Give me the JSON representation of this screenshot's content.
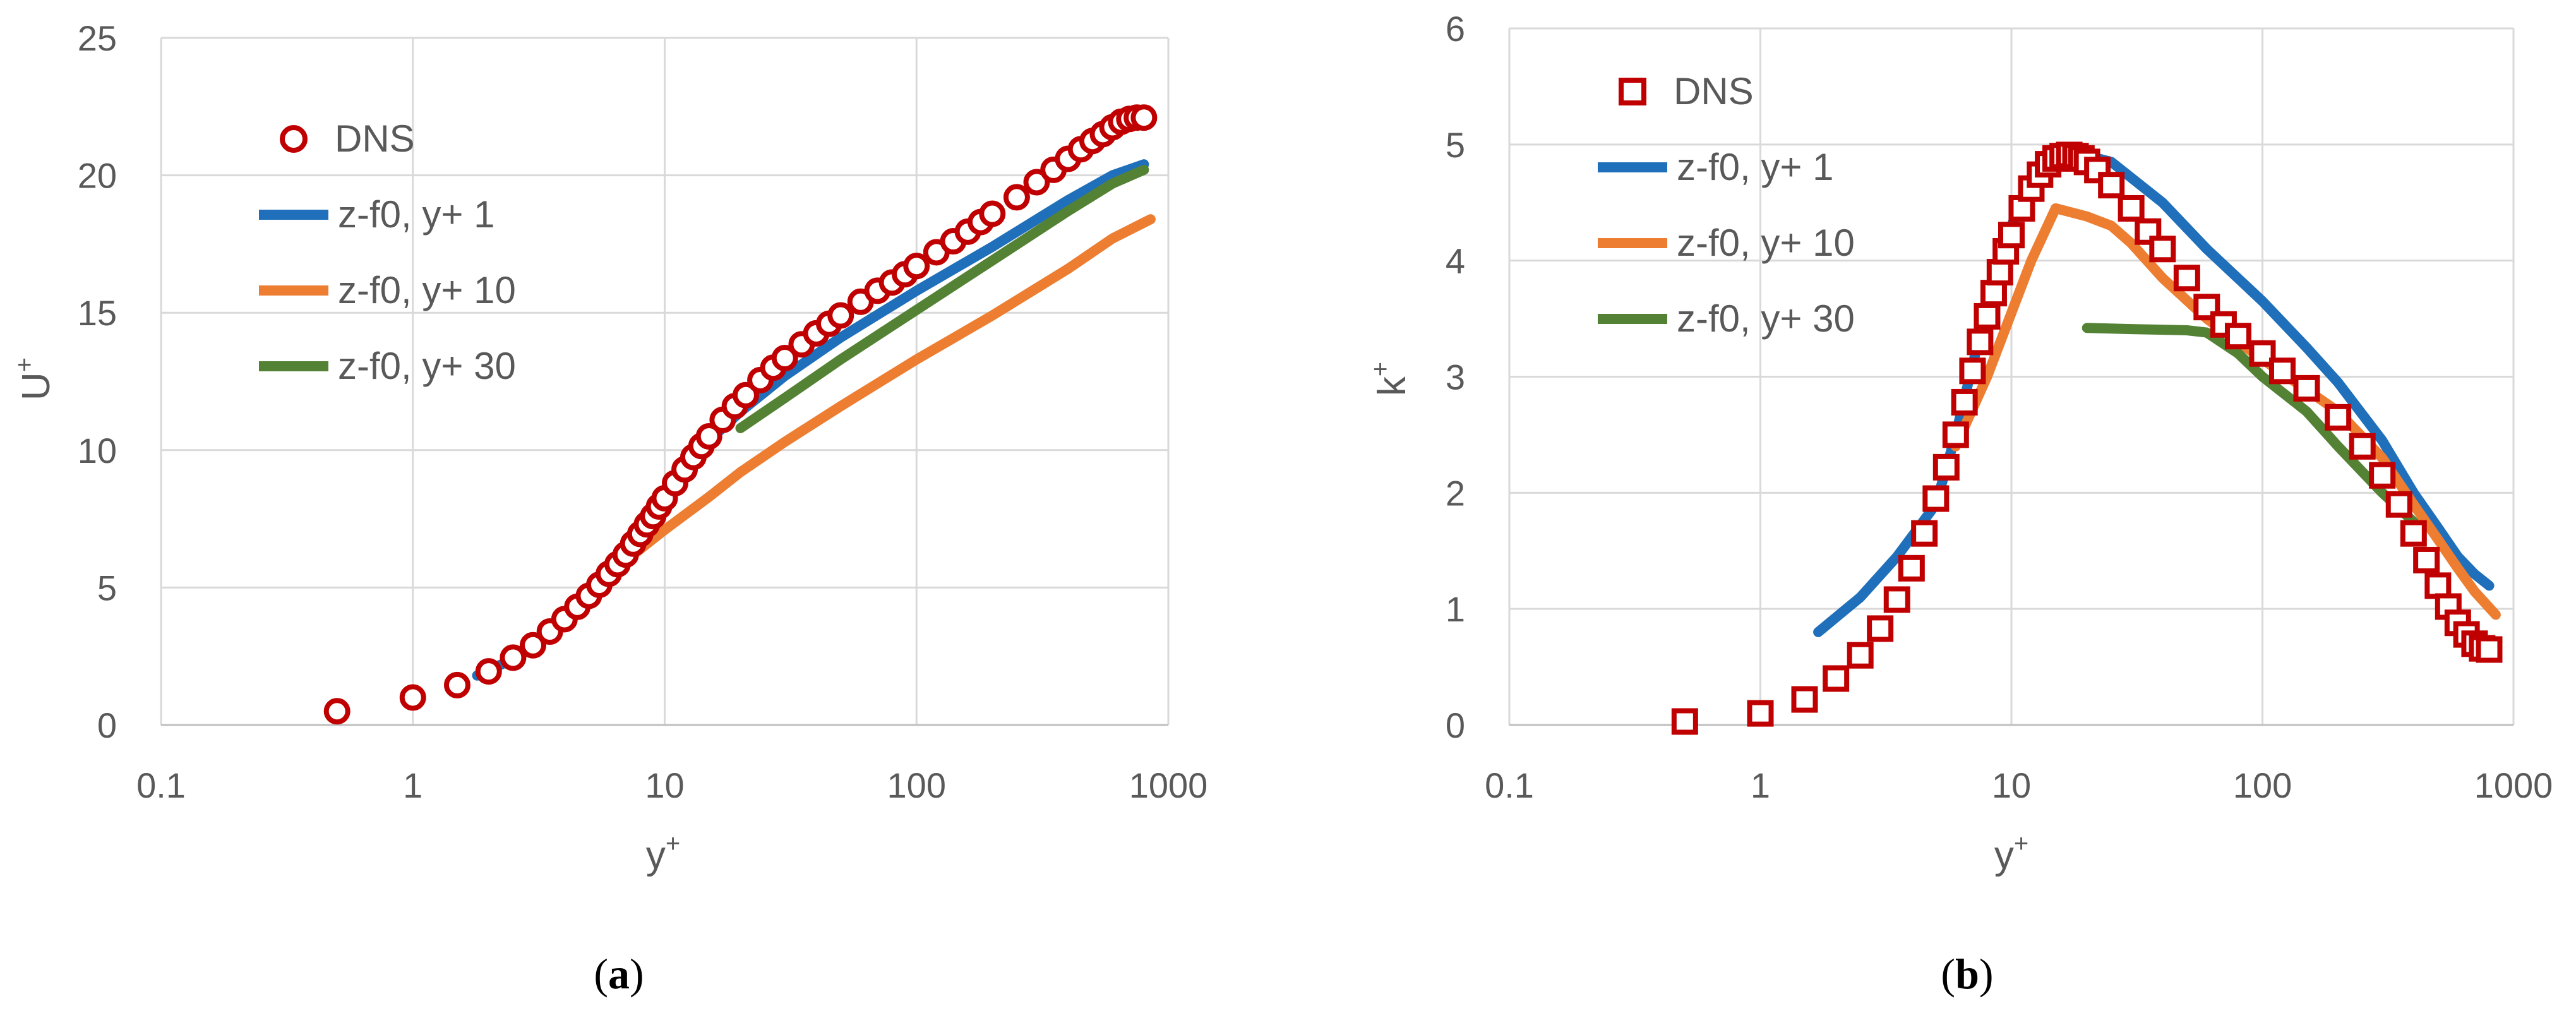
{
  "colors": {
    "dns": "#c00000",
    "yp1": "#1f6fba",
    "yp10": "#ed7d31",
    "yp30": "#548235",
    "tick_text": "#595959",
    "grid": "#d9d9d9"
  },
  "chart_data": [
    {
      "type": "line",
      "id": "a",
      "caption": "a",
      "xlabel": "y",
      "xlabel_sup": "+",
      "ylabel": "U",
      "ylabel_sup": "+",
      "xscale": "log",
      "xlim": [
        0.1,
        1000
      ],
      "ylim": [
        0,
        25
      ],
      "xticks": [
        0.1,
        1,
        10,
        100,
        1000
      ],
      "xtick_labels": [
        "0.1",
        "1",
        "10",
        "100",
        "1000"
      ],
      "yticks": [
        0,
        5,
        10,
        15,
        20,
        25
      ],
      "ytick_labels": [
        "0",
        "5",
        "10",
        "15",
        "20",
        "25"
      ],
      "grid": true,
      "legend_position": "top-left",
      "series": [
        {
          "name": "DNS",
          "key": "dns",
          "marker": "circle",
          "x": [
            0.5,
            1.0,
            1.5,
            2.0,
            2.5,
            3.0,
            3.5,
            4.0,
            4.5,
            5.0,
            5.5,
            6.0,
            6.5,
            7.0,
            7.5,
            8.0,
            8.5,
            9.0,
            9.5,
            10.0,
            11.0,
            12.0,
            13.0,
            14.0,
            15.0,
            17.0,
            19.0,
            21.0,
            24.0,
            27.0,
            30.0,
            35.0,
            40.0,
            45.0,
            50.0,
            60.0,
            70.0,
            80.0,
            90.0,
            100.0,
            120.0,
            140.0,
            160.0,
            180.0,
            200.0,
            250.0,
            300.0,
            350.0,
            400.0,
            450.0,
            500.0,
            550.0,
            600.0,
            650.0,
            700.0,
            750.0,
            800.0
          ],
          "y": [
            0.5,
            1.0,
            1.45,
            1.95,
            2.45,
            2.9,
            3.4,
            3.85,
            4.3,
            4.7,
            5.1,
            5.5,
            5.85,
            6.2,
            6.6,
            6.95,
            7.3,
            7.6,
            7.95,
            8.25,
            8.8,
            9.3,
            9.75,
            10.15,
            10.5,
            11.1,
            11.6,
            12.0,
            12.55,
            13.0,
            13.35,
            13.85,
            14.25,
            14.6,
            14.9,
            15.4,
            15.8,
            16.1,
            16.4,
            16.7,
            17.2,
            17.6,
            17.95,
            18.3,
            18.6,
            19.2,
            19.75,
            20.2,
            20.6,
            20.95,
            21.25,
            21.5,
            21.75,
            21.95,
            22.05,
            22.1,
            22.1
          ]
        },
        {
          "name": "z-f0, y+ 1",
          "key": "yp1",
          "marker": "line",
          "x": [
            1.8,
            2.5,
            3.5,
            5.0,
            7.0,
            10.0,
            14.0,
            20.0,
            30.0,
            50.0,
            100.0,
            200.0,
            400.0,
            600.0,
            800.0
          ],
          "y": [
            1.8,
            2.4,
            3.3,
            4.6,
            6.3,
            8.3,
            10.1,
            11.4,
            12.7,
            14.1,
            15.8,
            17.4,
            19.1,
            20.0,
            20.4
          ]
        },
        {
          "name": "z-f0, y+ 10",
          "key": "yp10",
          "marker": "line",
          "x": [
            6.0,
            8.0,
            10.0,
            15.0,
            20.0,
            30.0,
            50.0,
            100.0,
            200.0,
            400.0,
            600.0,
            850.0
          ],
          "y": [
            5.5,
            6.4,
            7.1,
            8.3,
            9.2,
            10.3,
            11.6,
            13.3,
            14.9,
            16.6,
            17.7,
            18.4
          ]
        },
        {
          "name": "z-f0, y+ 30",
          "key": "yp30",
          "marker": "line",
          "x": [
            20.0,
            30.0,
            50.0,
            100.0,
            200.0,
            400.0,
            600.0,
            800.0
          ],
          "y": [
            10.8,
            11.9,
            13.3,
            15.1,
            16.9,
            18.7,
            19.7,
            20.2
          ]
        }
      ]
    },
    {
      "type": "line",
      "id": "b",
      "caption": "b",
      "xlabel": "y",
      "xlabel_sup": "+",
      "ylabel": "k",
      "ylabel_sup": "+",
      "xscale": "log",
      "xlim": [
        0.1,
        1000
      ],
      "ylim": [
        0,
        6
      ],
      "xticks": [
        0.1,
        1,
        10,
        100,
        1000
      ],
      "xtick_labels": [
        "0.1",
        "1",
        "10",
        "100",
        "1000"
      ],
      "yticks": [
        0,
        1,
        2,
        3,
        4,
        5,
        6
      ],
      "ytick_labels": [
        "0",
        "1",
        "2",
        "3",
        "4",
        "5",
        "6"
      ],
      "grid": true,
      "legend_position": "top-left",
      "series": [
        {
          "name": "DNS",
          "key": "dns",
          "marker": "square",
          "x": [
            0.5,
            1.0,
            1.5,
            2.0,
            2.5,
            3.0,
            3.5,
            4.0,
            4.5,
            5.0,
            5.5,
            6.0,
            6.5,
            7.0,
            7.5,
            8.0,
            8.5,
            9.0,
            9.5,
            10.0,
            11.0,
            12.0,
            13.0,
            14.0,
            15.0,
            16.0,
            17.0,
            18.0,
            19.0,
            20.0,
            22.0,
            25.0,
            30.0,
            35.0,
            40.0,
            50.0,
            60.0,
            70.0,
            80.0,
            100.0,
            120.0,
            150.0,
            200.0,
            250.0,
            300.0,
            350.0,
            400.0,
            450.0,
            500.0,
            550.0,
            600.0,
            650.0,
            700.0,
            750.0,
            800.0
          ],
          "y": [
            0.03,
            0.1,
            0.22,
            0.4,
            0.6,
            0.83,
            1.08,
            1.35,
            1.65,
            1.95,
            2.22,
            2.5,
            2.78,
            3.05,
            3.3,
            3.52,
            3.72,
            3.9,
            4.08,
            4.22,
            4.45,
            4.62,
            4.74,
            4.83,
            4.88,
            4.9,
            4.91,
            4.9,
            4.88,
            4.85,
            4.78,
            4.65,
            4.45,
            4.25,
            4.1,
            3.85,
            3.6,
            3.45,
            3.35,
            3.2,
            3.05,
            2.9,
            2.65,
            2.4,
            2.15,
            1.9,
            1.65,
            1.42,
            1.2,
            1.02,
            0.88,
            0.78,
            0.7,
            0.66,
            0.65
          ]
        },
        {
          "name": "z-f0, y+ 1",
          "key": "yp1",
          "marker": "line",
          "x": [
            1.7,
            2.5,
            3.5,
            5.0,
            6.0,
            7.0,
            8.0,
            10.0,
            12.0,
            15.0,
            18.0,
            25.0,
            40.0,
            60.0,
            100.0,
            150.0,
            200.0,
            300.0,
            400.0,
            500.0,
            600.0,
            700.0,
            800.0
          ],
          "y": [
            0.8,
            1.1,
            1.45,
            1.9,
            2.5,
            3.1,
            3.6,
            4.3,
            4.7,
            4.88,
            4.93,
            4.85,
            4.5,
            4.1,
            3.65,
            3.25,
            2.95,
            2.45,
            2.0,
            1.7,
            1.45,
            1.3,
            1.2
          ]
        },
        {
          "name": "z-f0, y+ 10",
          "key": "yp10",
          "marker": "line",
          "x": [
            6.0,
            8.0,
            10.0,
            12.0,
            15.0,
            20.0,
            25.0,
            30.0,
            40.0,
            60.0,
            100.0,
            200.0,
            300.0,
            400.0,
            500.0,
            600.0,
            700.0,
            850.0
          ],
          "y": [
            2.4,
            3.0,
            3.55,
            4.0,
            4.45,
            4.38,
            4.3,
            4.15,
            3.85,
            3.5,
            3.15,
            2.7,
            2.3,
            1.9,
            1.6,
            1.35,
            1.15,
            0.95
          ]
        },
        {
          "name": "z-f0, y+ 30",
          "key": "yp30",
          "marker": "line",
          "x": [
            20.0,
            30.0,
            50.0,
            60.0,
            80.0,
            100.0,
            150.0,
            200.0,
            300.0,
            400.0
          ],
          "y": [
            3.42,
            3.41,
            3.4,
            3.38,
            3.2,
            3.0,
            2.7,
            2.4,
            2.0,
            1.75
          ]
        }
      ]
    }
  ]
}
